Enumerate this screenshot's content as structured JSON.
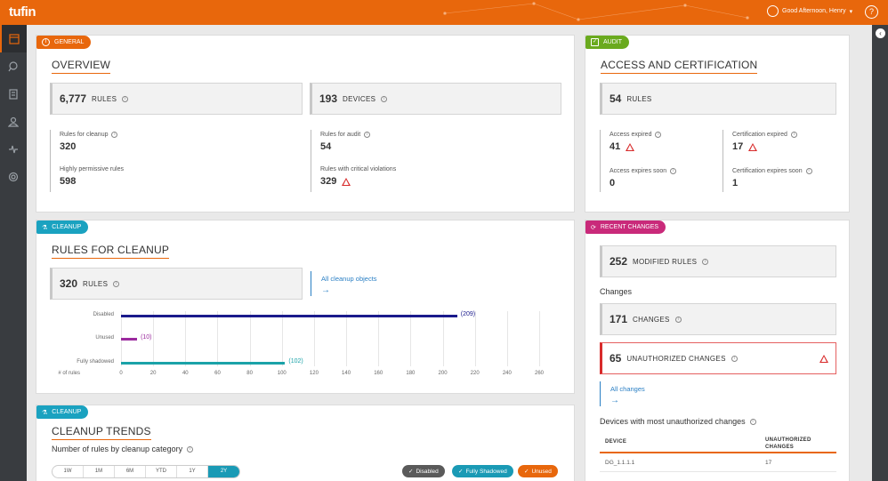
{
  "topbar": {
    "logo": "tufin",
    "greeting": "Good Afternoon, Henry",
    "help": "?"
  },
  "sidebar": {
    "items": [
      "dashboard-icon",
      "search-icon",
      "document-icon",
      "users-icon",
      "activity-icon",
      "gear-icon"
    ]
  },
  "general": {
    "tag": "GENERAL",
    "title": "OVERVIEW",
    "rules": {
      "num": "6,777",
      "label": "RULES"
    },
    "devices": {
      "num": "193",
      "label": "DEVICES"
    },
    "cleanup_label": "Rules for cleanup",
    "cleanup_value": "320",
    "audit_label": "Rules for audit",
    "audit_value": "54",
    "permissive_label": "Highly permissive rules",
    "permissive_value": "598",
    "critical_label": "Rules with critical violations",
    "critical_value": "329"
  },
  "audit": {
    "tag": "AUDIT",
    "title": "ACCESS AND CERTIFICATION",
    "rules": {
      "num": "54",
      "label": "RULES"
    },
    "access_expired_label": "Access expired",
    "access_expired_value": "41",
    "cert_expired_label": "Certification expired",
    "cert_expired_value": "17",
    "access_soon_label": "Access expires soon",
    "access_soon_value": "0",
    "cert_soon_label": "Certification expires soon",
    "cert_soon_value": "1"
  },
  "cleanup": {
    "tag": "CLEANUP",
    "title": "RULES FOR CLEANUP",
    "rules": {
      "num": "320",
      "label": "RULES"
    },
    "link": "All cleanup objects",
    "arrow": "→"
  },
  "chart_data": {
    "type": "bar",
    "orientation": "horizontal",
    "categories": [
      "Disabled",
      "Unused",
      "Fully shadowed"
    ],
    "values": [
      209,
      10,
      102
    ],
    "value_labels": [
      "(209)",
      "(10)",
      "(102)"
    ],
    "colors": [
      "#1a1a8c",
      "#9b2a9e",
      "#1aa2a8"
    ],
    "xlabel": "# of rules",
    "xticks": [
      "0",
      "20",
      "40",
      "60",
      "80",
      "100",
      "120",
      "140",
      "160",
      "180",
      "200",
      "220",
      "240",
      "260"
    ],
    "xlim": [
      0,
      260
    ],
    "grid": true
  },
  "trends": {
    "tag": "CLEANUP",
    "title": "CLEANUP TRENDS",
    "subtitle": "Number of rules by cleanup category",
    "ranges": [
      "1W",
      "1M",
      "6M",
      "YTD",
      "1Y",
      "2Y"
    ],
    "active_range": "2Y",
    "legend": [
      {
        "label": "Disabled",
        "color": "#5a5a5a"
      },
      {
        "label": "Fully Shadowed",
        "color": "#1a9ab5"
      },
      {
        "label": "Unused",
        "color": "#e8670c"
      }
    ]
  },
  "recent": {
    "tag": "RECENT CHANGES",
    "modified": {
      "num": "252",
      "label": "MODIFIED RULES"
    },
    "changes_heading": "Changes",
    "changes": {
      "num": "171",
      "label": "CHANGES"
    },
    "unauthorized": {
      "num": "65",
      "label": "UNAUTHORIZED CHANGES"
    },
    "link": "All changes",
    "arrow": "→",
    "devices_heading": "Devices with most unauthorized changes",
    "col_device": "DEVICE",
    "col_unauth": "UNAUTHORIZED CHANGES",
    "rows": [
      {
        "device": "DG_1.1.1.1",
        "count": "17"
      }
    ]
  },
  "colors": {
    "brand": "#e8670c",
    "general": "#e8670c",
    "audit": "#6aaa1e",
    "cleanup": "#1aa2c0",
    "recent": "#c92a7a",
    "link": "#2a7fc4"
  }
}
